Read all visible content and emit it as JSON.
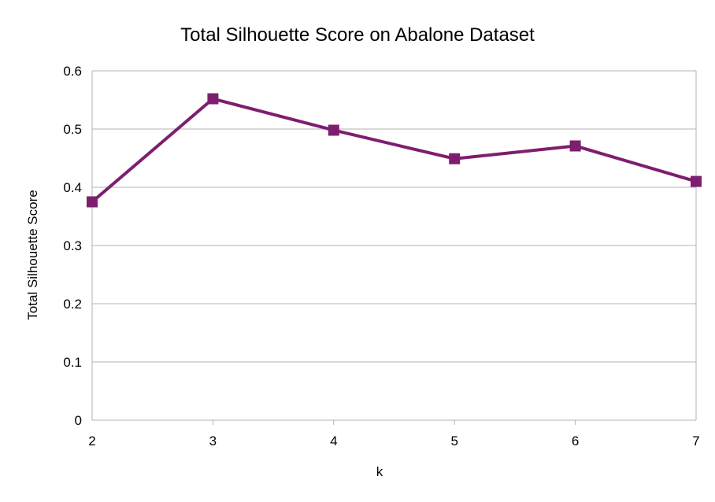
{
  "chart_data": {
    "type": "line",
    "title": "Total Silhouette Score on Abalone Dataset",
    "xlabel": "k",
    "ylabel": "Total Silhouette Score",
    "x": [
      2,
      3,
      4,
      5,
      6,
      7
    ],
    "series": [
      {
        "values": [
          0.375,
          0.552,
          0.498,
          0.449,
          0.471,
          0.41
        ],
        "color": "#7e1e6f",
        "marker": "square"
      }
    ],
    "xlim": [
      2,
      7
    ],
    "ylim": [
      0,
      0.6
    ],
    "x_ticks": [
      "2",
      "3",
      "4",
      "5",
      "6",
      "7"
    ],
    "y_ticks": [
      "0",
      "0.1",
      "0.2",
      "0.3",
      "0.4",
      "0.5",
      "0.6"
    ],
    "y_tick_values": [
      0,
      0.1,
      0.2,
      0.3,
      0.4,
      0.5,
      0.6
    ],
    "grid": true,
    "grid_color": "#b3b3b3",
    "legend": "none"
  }
}
